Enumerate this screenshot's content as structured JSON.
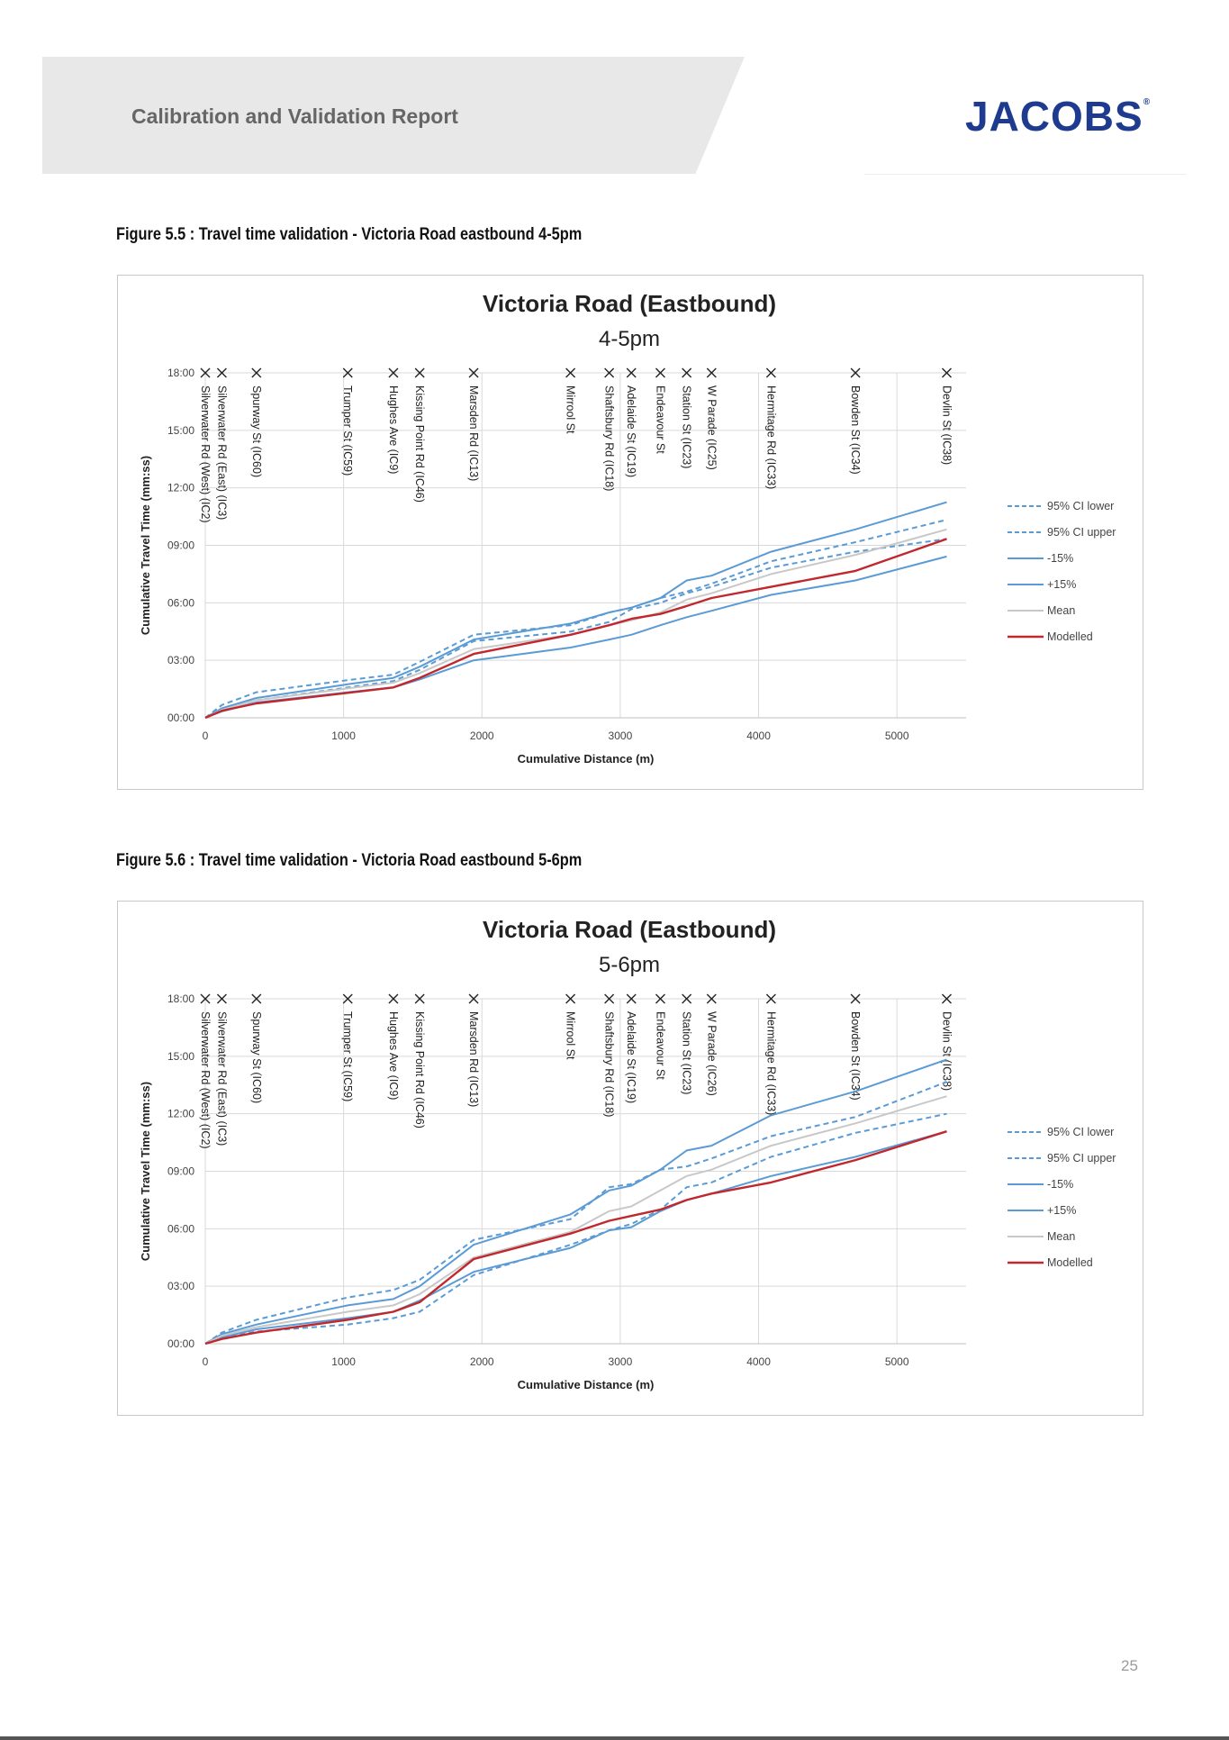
{
  "header": {
    "report_title": "Calibration and Validation Report",
    "logo_text": "JACOBS",
    "logo_mark": "®",
    "logo_color": "#1f3b8f"
  },
  "page_number": "25",
  "chart_data": [
    {
      "type": "line",
      "caption": "Figure 5.5 : Travel time validation - Victoria Road eastbound 4-5pm",
      "title": "Victoria Road (Eastbound)",
      "subtitle": "4-5pm",
      "xlabel": "Cumulative Distance (m)",
      "ylabel": "Cumulative Travel Time (mm:ss)",
      "xlim": [
        0,
        5500
      ],
      "ylim": [
        0,
        1080
      ],
      "xticks": [
        0,
        1000,
        2000,
        3000,
        4000,
        5000
      ],
      "yticks": [
        {
          "v": 0,
          "label": "00:00"
        },
        {
          "v": 180,
          "label": "03:00"
        },
        {
          "v": 360,
          "label": "06:00"
        },
        {
          "v": 540,
          "label": "09:00"
        },
        {
          "v": 720,
          "label": "12:00"
        },
        {
          "v": 900,
          "label": "15:00"
        },
        {
          "v": 1080,
          "label": "18:00"
        }
      ],
      "grid": true,
      "legend": "right",
      "stops": [
        {
          "name": "Silverwater Rd (West) (IC2)",
          "x": 0
        },
        {
          "name": "Silverwater Rd (East) (IC3)",
          "x": 120
        },
        {
          "name": "Spurway St (IC60)",
          "x": 370
        },
        {
          "name": "Trumper St (IC59)",
          "x": 1030
        },
        {
          "name": "Hughes Ave (IC9)",
          "x": 1360
        },
        {
          "name": "Kissing Point Rd (IC46)",
          "x": 1550
        },
        {
          "name": "Marsden Rd (IC13)",
          "x": 1940
        },
        {
          "name": "Mirrool St",
          "x": 2640
        },
        {
          "name": "Shaftsbury Rd (IC18)",
          "x": 2920
        },
        {
          "name": "Adelaide St (IC19)",
          "x": 3080
        },
        {
          "name": "Endeavour St",
          "x": 3290
        },
        {
          "name": "Station St (IC23)",
          "x": 3480
        },
        {
          "name": "W Parade (IC25)",
          "x": 3660
        },
        {
          "name": "Hermitage Rd (IC33)",
          "x": 4090
        },
        {
          "name": "Bowden St (IC34)",
          "x": 4700
        },
        {
          "name": "Devlin St (IC38)",
          "x": 5360
        }
      ],
      "x": [
        0,
        120,
        370,
        1030,
        1360,
        1550,
        1940,
        2640,
        2920,
        3080,
        3290,
        3480,
        3660,
        4090,
        4700,
        5360
      ],
      "series": [
        {
          "name": "95% CI lower",
          "color": "#5b9bd5",
          "dash": true,
          "values": [
            0,
            25,
            55,
            95,
            115,
            150,
            240,
            270,
            300,
            340,
            360,
            390,
            410,
            470,
            520,
            560
          ]
        },
        {
          "name": "95% CI upper",
          "color": "#5b9bd5",
          "dash": true,
          "values": [
            0,
            40,
            80,
            118,
            135,
            175,
            260,
            290,
            330,
            345,
            375,
            395,
            420,
            490,
            550,
            620
          ]
        },
        {
          "name": "-15%",
          "color": "#5b9bd5",
          "dash": false,
          "values": [
            0,
            20,
            48,
            80,
            95,
            120,
            180,
            220,
            245,
            260,
            290,
            315,
            335,
            385,
            430,
            505
          ]
        },
        {
          "name": "+15%",
          "color": "#5b9bd5",
          "dash": false,
          "values": [
            0,
            30,
            62,
            105,
            125,
            160,
            245,
            295,
            330,
            345,
            375,
            430,
            445,
            520,
            590,
            675
          ]
        },
        {
          "name": "Mean",
          "color": "#c8c8c8",
          "dash": false,
          "values": [
            0,
            25,
            55,
            92,
            110,
            140,
            215,
            260,
            290,
            305,
            330,
            370,
            390,
            450,
            510,
            590
          ]
        },
        {
          "name": "Modelled",
          "color": "#c0282e",
          "dash": false,
          "values": [
            0,
            22,
            45,
            78,
            95,
            125,
            200,
            260,
            290,
            310,
            325,
            350,
            375,
            410,
            460,
            560
          ]
        }
      ]
    },
    {
      "type": "line",
      "caption": "Figure 5.6 : Travel time validation - Victoria Road eastbound 5-6pm",
      "title": "Victoria Road (Eastbound)",
      "subtitle": "5-6pm",
      "xlabel": "Cumulative Distance (m)",
      "ylabel": "Cumulative Travel Time (mm:ss)",
      "xlim": [
        0,
        5500
      ],
      "ylim": [
        0,
        1080
      ],
      "xticks": [
        0,
        1000,
        2000,
        3000,
        4000,
        5000
      ],
      "yticks": [
        {
          "v": 0,
          "label": "00:00"
        },
        {
          "v": 180,
          "label": "03:00"
        },
        {
          "v": 360,
          "label": "06:00"
        },
        {
          "v": 540,
          "label": "09:00"
        },
        {
          "v": 720,
          "label": "12:00"
        },
        {
          "v": 900,
          "label": "15:00"
        },
        {
          "v": 1080,
          "label": "18:00"
        }
      ],
      "grid": true,
      "legend": "right",
      "stops": [
        {
          "name": "Silverwater Rd (West) (IC2)",
          "x": 0
        },
        {
          "name": "Silverwater Rd (East) (IC3)",
          "x": 120
        },
        {
          "name": "Spurway St (IC60)",
          "x": 370
        },
        {
          "name": "Trumper St (IC59)",
          "x": 1030
        },
        {
          "name": "Hughes Ave (IC9)",
          "x": 1360
        },
        {
          "name": "Kissing Point Rd (IC46)",
          "x": 1550
        },
        {
          "name": "Marsden Rd (IC13)",
          "x": 1940
        },
        {
          "name": "Mirrool St",
          "x": 2640
        },
        {
          "name": "Shaftsbury Rd (IC18)",
          "x": 2920
        },
        {
          "name": "Adelaide St (IC19)",
          "x": 3080
        },
        {
          "name": "Endeavour St",
          "x": 3290
        },
        {
          "name": "Station St (IC23)",
          "x": 3480
        },
        {
          "name": "W Parade (IC26)",
          "x": 3660
        },
        {
          "name": "Hermitage Rd (IC33)",
          "x": 4090
        },
        {
          "name": "Bowden St (IC34)",
          "x": 4700
        },
        {
          "name": "Devlin St (IC38)",
          "x": 5360
        }
      ],
      "x": [
        0,
        120,
        370,
        1030,
        1360,
        1550,
        1940,
        2640,
        2920,
        3080,
        3290,
        3480,
        3660,
        4090,
        4700,
        5360
      ],
      "series": [
        {
          "name": "95% CI lower",
          "color": "#5b9bd5",
          "dash": true,
          "values": [
            0,
            35,
            75,
            145,
            168,
            200,
            325,
            390,
            490,
            500,
            545,
            555,
            580,
            650,
            710,
            820
          ]
        },
        {
          "name": "95% CI upper",
          "color": "#5b9bd5",
          "dash": true,
          "values": [
            0,
            20,
            38,
            60,
            80,
            100,
            215,
            310,
            355,
            375,
            420,
            490,
            505,
            585,
            660,
            720
          ]
        },
        {
          "name": "-15%",
          "color": "#5b9bd5",
          "dash": false,
          "values": [
            0,
            20,
            45,
            80,
            100,
            135,
            225,
            300,
            355,
            365,
            415,
            450,
            470,
            525,
            585,
            665
          ]
        },
        {
          "name": "+15%",
          "color": "#5b9bd5",
          "dash": false,
          "values": [
            0,
            30,
            60,
            120,
            140,
            180,
            310,
            405,
            480,
            495,
            545,
            605,
            620,
            715,
            790,
            890
          ]
        },
        {
          "name": "Mean",
          "color": "#c8c8c8",
          "dash": false,
          "values": [
            0,
            25,
            52,
            100,
            120,
            155,
            270,
            350,
            415,
            430,
            480,
            525,
            545,
            620,
            690,
            775
          ]
        },
        {
          "name": "Modelled",
          "color": "#c0282e",
          "dash": false,
          "values": [
            0,
            15,
            35,
            75,
            100,
            130,
            265,
            345,
            385,
            400,
            420,
            450,
            470,
            505,
            575,
            665
          ]
        }
      ]
    }
  ]
}
